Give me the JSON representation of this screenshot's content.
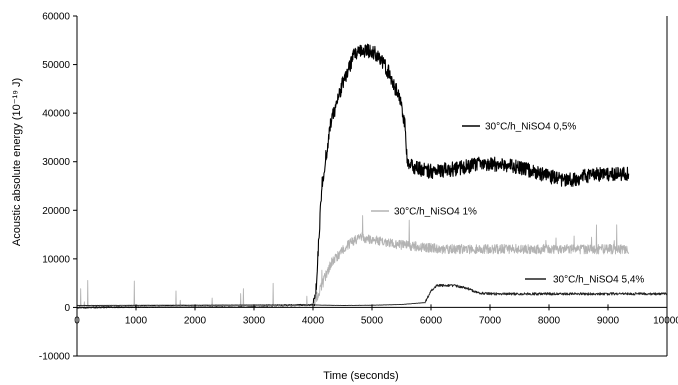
{
  "chart_data": {
    "type": "line",
    "title": "",
    "xlabel": "Time (seconds)",
    "ylabel": "Acoustic absolute energy (10⁻¹⁹ J)",
    "xlim": [
      0,
      10000
    ],
    "ylim": [
      -10000,
      60000
    ],
    "x_ticks": [
      0,
      1000,
      2000,
      3000,
      4000,
      5000,
      6000,
      7000,
      8000,
      9000,
      10000
    ],
    "y_ticks": [
      -10000,
      0,
      10000,
      20000,
      30000,
      40000,
      50000,
      60000
    ],
    "x_tick_labels": [
      "0",
      "1000",
      "2000",
      "3000",
      "4000",
      "5000",
      "6000",
      "7000",
      "8000",
      "9000",
      "10000"
    ],
    "y_tick_labels": [
      "-10000",
      "0",
      "10000",
      "20000",
      "30000",
      "40000",
      "50000",
      "60000"
    ],
    "grid": false,
    "colors": {
      "series_05": "#000000",
      "series_1": "#b3b3b3",
      "series_54": "#222222",
      "axis": "#000000"
    },
    "series": [
      {
        "name": "30°C/h_NiSO4   0,5%",
        "color": "#000000",
        "noise": 1500,
        "x": [
          0,
          4000,
          4050,
          4150,
          4300,
          4500,
          4700,
          4900,
          5100,
          5300,
          5500,
          5560,
          5600,
          5800,
          6000,
          6400,
          6800,
          7200,
          7600,
          8000,
          8300,
          8600,
          8900,
          9200,
          9350
        ],
        "y": [
          0,
          500,
          3000,
          25000,
          38000,
          46000,
          52000,
          53000,
          52000,
          48000,
          42000,
          37000,
          29500,
          28500,
          28000,
          28500,
          29500,
          29500,
          28500,
          27000,
          26000,
          27000,
          27500,
          27500,
          27500
        ]
      },
      {
        "name": "30°C/h_NiSO4   1%",
        "color": "#b3b3b3",
        "noise": 1000,
        "x": [
          0,
          4000,
          4100,
          4300,
          4600,
          4800,
          5000,
          5400,
          5800,
          6200,
          6600,
          7000,
          7500,
          8000,
          8500,
          9000,
          9350
        ],
        "y": [
          0,
          500,
          3000,
          9000,
          13000,
          14500,
          14000,
          13000,
          12500,
          12000,
          12000,
          12000,
          12000,
          12000,
          12000,
          12000,
          12000
        ]
      },
      {
        "name": "30°C/h_NiSO4   5,4%",
        "color": "#222222",
        "noise": 250,
        "x": [
          0,
          3000,
          4000,
          4500,
          5000,
          5500,
          5900,
          6000,
          6100,
          6400,
          6600,
          6800,
          7000,
          7500,
          8000,
          9000,
          10000
        ],
        "y": [
          400,
          500,
          500,
          400,
          450,
          600,
          1000,
          3500,
          4500,
          4500,
          4000,
          3000,
          2800,
          2800,
          2800,
          2800,
          2800
        ]
      }
    ],
    "legend": [
      {
        "label": "30°C/h_NiSO4   0,5%",
        "color": "#000000"
      },
      {
        "label": "30°C/h_NiSO4   1%",
        "color": "#b3b3b3"
      },
      {
        "label": "30°C/h_NiSO4   5,4%",
        "color": "#222222"
      }
    ],
    "legend_placement": "inline"
  }
}
